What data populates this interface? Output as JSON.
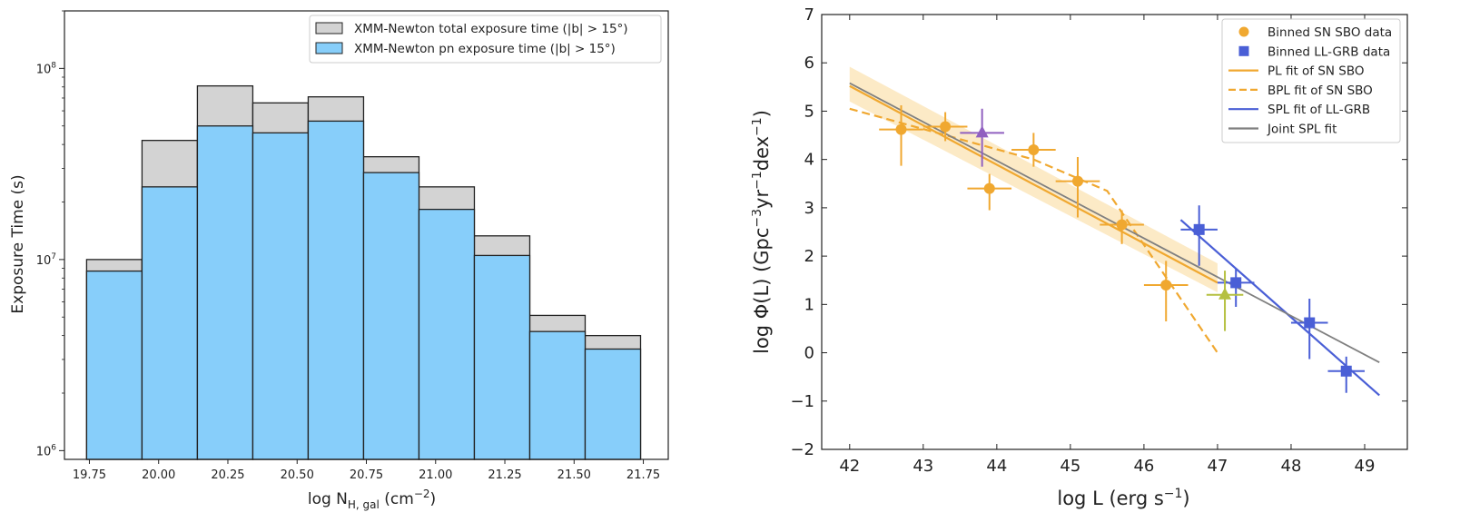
{
  "chart_data": [
    {
      "type": "bar",
      "subtype": "stacked-overlay-histogram",
      "title": "",
      "xlabel": "log N",
      "xlabel_sub": "H, gal",
      "xlabel_unit": "(cm",
      "xlabel_unit_sup": "−2",
      "xlabel_unit_close": ")",
      "ylabel": "Exposure Time (s)",
      "yscale": "log",
      "ylim": [
        900000,
        200000000
      ],
      "xlim": [
        19.66,
        21.84
      ],
      "bin_edges": [
        19.74,
        19.94,
        20.14,
        20.34,
        20.54,
        20.74,
        20.94,
        21.14,
        21.34,
        21.54,
        21.74
      ],
      "x_ticks": [
        "19.75",
        "20.00",
        "20.25",
        "20.50",
        "20.75",
        "21.00",
        "21.25",
        "21.50",
        "21.75"
      ],
      "x_tick_values": [
        19.75,
        20.0,
        20.25,
        20.5,
        20.75,
        21.0,
        21.25,
        21.5,
        21.75
      ],
      "y_ticks": [
        {
          "value": 1000000,
          "base": "10",
          "exp": "6"
        },
        {
          "value": 10000000,
          "base": "10",
          "exp": "7"
        },
        {
          "value": 100000000,
          "base": "10",
          "exp": "8"
        }
      ],
      "series": [
        {
          "name": "XMM-Newton total exposure time (|b| > 15°)",
          "color": "#d3d3d3",
          "values": [
            10000000,
            42000000,
            81000000,
            66000000,
            71000000,
            34500000,
            24000000,
            13300000,
            5100000,
            4000000
          ]
        },
        {
          "name": "XMM-Newton pn exposure time (|b| > 15°)",
          "color": "#87cefa",
          "values": [
            8700000,
            24000000,
            50000000,
            46000000,
            53000000,
            28500000,
            18300000,
            10500000,
            4200000,
            3400000
          ]
        }
      ],
      "legend_position": "top-right",
      "grid": false
    },
    {
      "type": "scatter",
      "subtype": "errorbars-with-fits",
      "title": "",
      "xlabel": "log L (erg s",
      "xlabel_sup": "−1",
      "xlabel_close": ")",
      "ylabel": "log Φ(L) (Gpc",
      "ylabel_sup1": "−3",
      "ylabel_mid": "yr",
      "ylabel_sup2": "−1",
      "ylabel_mid2": "dex",
      "ylabel_sup3": "−1",
      "ylabel_close": ")",
      "xlim": [
        41.62,
        49.58
      ],
      "ylim": [
        -2,
        7
      ],
      "x_ticks": [
        "42",
        "43",
        "44",
        "45",
        "46",
        "47",
        "48",
        "49"
      ],
      "x_tick_values": [
        42,
        43,
        44,
        45,
        46,
        47,
        48,
        49
      ],
      "y_ticks": [
        "−2",
        "−1",
        "0",
        "1",
        "2",
        "3",
        "4",
        "5",
        "6",
        "7"
      ],
      "y_tick_values": [
        -2,
        -1,
        0,
        1,
        2,
        3,
        4,
        5,
        6,
        7
      ],
      "legend_position": "top-right",
      "grid": false,
      "scatter_series": [
        {
          "name": "Binned SN SBO data",
          "marker": "circle",
          "color": "#f0a830",
          "points": [
            {
              "x": 42.7,
              "y": 4.62,
              "xerr": 0.3,
              "yerr_lo": 0.75,
              "yerr_hi": 0.5
            },
            {
              "x": 43.3,
              "y": 4.68,
              "xerr": 0.3,
              "yerr_lo": 0.3,
              "yerr_hi": 0.3
            },
            {
              "x": 43.9,
              "y": 3.4,
              "xerr": 0.3,
              "yerr_lo": 0.45,
              "yerr_hi": 0.3
            },
            {
              "x": 44.5,
              "y": 4.2,
              "xerr": 0.3,
              "yerr_lo": 0.35,
              "yerr_hi": 0.35
            },
            {
              "x": 45.1,
              "y": 3.55,
              "xerr": 0.3,
              "yerr_lo": 0.75,
              "yerr_hi": 0.5
            },
            {
              "x": 45.7,
              "y": 2.65,
              "xerr": 0.3,
              "yerr_lo": 0.4,
              "yerr_hi": 0.3
            },
            {
              "x": 46.3,
              "y": 1.4,
              "xerr": 0.3,
              "yerr_lo": 0.75,
              "yerr_hi": 0.5
            }
          ]
        },
        {
          "name": "Binned LL-GRB data",
          "marker": "square",
          "color": "#4a5fd6",
          "points": [
            {
              "x": 46.75,
              "y": 2.55,
              "xerr": 0.25,
              "yerr_lo": 0.75,
              "yerr_hi": 0.5
            },
            {
              "x": 47.25,
              "y": 1.45,
              "xerr": 0.25,
              "yerr_lo": 0.5,
              "yerr_hi": 0.3
            },
            {
              "x": 48.25,
              "y": 0.62,
              "xerr": 0.25,
              "yerr_lo": 0.75,
              "yerr_hi": 0.5
            },
            {
              "x": 48.75,
              "y": -0.38,
              "xerr": 0.25,
              "yerr_lo": 0.45,
              "yerr_hi": 0.3
            }
          ]
        },
        {
          "marker": "triangle",
          "color": "#9060c0",
          "points": [
            {
              "x": 43.8,
              "y": 4.55,
              "xerr": 0.3,
              "yerr_lo": 0.7,
              "yerr_hi": 0.5
            }
          ]
        },
        {
          "marker": "triangle",
          "color": "#b5c040",
          "points": [
            {
              "x": 47.1,
              "y": 1.2,
              "xerr": 0.25,
              "yerr_lo": 0.75,
              "yerr_hi": 0.5
            }
          ]
        }
      ],
      "line_series": [
        {
          "name": "PL fit of SN SBO",
          "color": "#f0a830",
          "dash": "solid",
          "x": [
            42.0,
            47.0
          ],
          "y": [
            5.52,
            1.45
          ]
        },
        {
          "name": "BPL fit of SN SBO",
          "color": "#f0a830",
          "dash": "dashed",
          "x": [
            42.0,
            44.5,
            45.5,
            47.0
          ],
          "y": [
            5.05,
            4.0,
            3.35,
            0.0
          ]
        },
        {
          "name": "SPL fit of LL-GRB",
          "color": "#4a5fd6",
          "dash": "solid",
          "x": [
            46.5,
            49.2
          ],
          "y": [
            2.75,
            -0.88
          ]
        },
        {
          "name": "Joint SPL fit",
          "color": "#808080",
          "dash": "solid",
          "x": [
            42.0,
            49.2
          ],
          "y": [
            5.58,
            -0.2
          ]
        }
      ],
      "band": {
        "color": "#fbe6bc",
        "x": [
          42.0,
          47.0
        ],
        "y_lo": [
          5.2,
          1.25
        ],
        "y_hi": [
          5.92,
          1.85
        ]
      }
    }
  ]
}
